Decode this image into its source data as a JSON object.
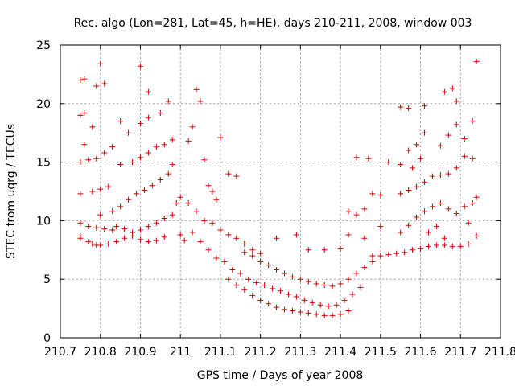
{
  "chart_data": {
    "type": "scatter",
    "title": "Rec. algo (Lon=281, Lat=45, h=HE), days 210-211, 2008, window 003",
    "xlabel": "GPS time / Days of year 2008",
    "ylabel": "STEC from uqrg / TECUs",
    "xlim": [
      210.7,
      211.8
    ],
    "ylim": [
      0,
      25
    ],
    "xticks": [
      "210.7",
      "210.8",
      "210.9",
      "211",
      "211.1",
      "211.2",
      "211.3",
      "211.4",
      "211.5",
      "211.6",
      "211.7",
      "211.8"
    ],
    "yticks": [
      "0",
      "5",
      "10",
      "15",
      "20",
      "25"
    ],
    "grid": true,
    "marker": "+",
    "color": "#cc0000",
    "series": [
      {
        "points": [
          [
            210.75,
            22.0
          ],
          [
            210.76,
            22.1
          ],
          [
            210.79,
            21.5
          ],
          [
            210.8,
            23.4
          ],
          [
            210.81,
            21.7
          ],
          [
            210.75,
            19.0
          ],
          [
            210.76,
            19.2
          ],
          [
            210.78,
            18.0
          ],
          [
            210.75,
            15.0
          ],
          [
            210.77,
            15.2
          ],
          [
            210.79,
            15.3
          ],
          [
            210.81,
            15.8
          ],
          [
            210.83,
            16.3
          ],
          [
            210.76,
            16.5
          ],
          [
            210.75,
            12.3
          ],
          [
            210.78,
            12.5
          ],
          [
            210.8,
            12.7
          ],
          [
            210.82,
            12.9
          ],
          [
            210.75,
            9.8
          ],
          [
            210.77,
            9.5
          ],
          [
            210.79,
            9.4
          ],
          [
            210.81,
            9.3
          ],
          [
            210.83,
            9.2
          ],
          [
            210.75,
            8.7
          ],
          [
            210.77,
            8.2
          ],
          [
            210.78,
            8.0
          ],
          [
            210.79,
            7.9
          ],
          [
            210.8,
            7.9
          ],
          [
            210.82,
            8.0
          ],
          [
            210.84,
            8.2
          ],
          [
            210.86,
            8.5
          ],
          [
            210.88,
            8.7
          ],
          [
            210.9,
            8.4
          ],
          [
            210.92,
            8.2
          ],
          [
            210.94,
            8.3
          ],
          [
            210.96,
            8.6
          ],
          [
            210.75,
            8.5
          ],
          [
            210.8,
            10.5
          ],
          [
            210.83,
            10.8
          ],
          [
            210.85,
            11.2
          ],
          [
            210.87,
            11.8
          ],
          [
            210.89,
            12.3
          ],
          [
            210.91,
            12.6
          ],
          [
            210.93,
            13.0
          ],
          [
            210.95,
            13.5
          ],
          [
            210.85,
            14.8
          ],
          [
            210.88,
            15.0
          ],
          [
            210.9,
            15.4
          ],
          [
            210.92,
            15.8
          ],
          [
            210.94,
            16.3
          ],
          [
            210.96,
            16.5
          ],
          [
            210.98,
            16.9
          ],
          [
            210.9,
            18.3
          ],
          [
            210.92,
            18.8
          ],
          [
            210.95,
            19.2
          ],
          [
            210.97,
            20.2
          ],
          [
            210.9,
            23.2
          ],
          [
            210.92,
            21.0
          ],
          [
            210.84,
            9.5
          ],
          [
            210.86,
            9.3
          ],
          [
            210.88,
            9.0
          ],
          [
            210.9,
            9.2
          ],
          [
            210.92,
            9.5
          ],
          [
            210.94,
            9.8
          ],
          [
            210.96,
            10.2
          ],
          [
            210.98,
            10.5
          ],
          [
            210.99,
            11.5
          ],
          [
            211.0,
            12.0
          ],
          [
            210.85,
            18.5
          ],
          [
            210.87,
            17.5
          ],
          [
            210.97,
            14.0
          ],
          [
            210.98,
            14.8
          ],
          [
            211.0,
            8.8
          ],
          [
            211.01,
            8.3
          ],
          [
            211.02,
            16.8
          ],
          [
            211.03,
            18.0
          ],
          [
            211.04,
            21.2
          ],
          [
            211.05,
            20.2
          ],
          [
            211.06,
            15.2
          ],
          [
            211.07,
            13.0
          ],
          [
            211.08,
            12.5
          ],
          [
            211.09,
            11.8
          ],
          [
            211.1,
            17.1
          ],
          [
            211.12,
            14.0
          ],
          [
            211.14,
            13.8
          ],
          [
            211.02,
            11.5
          ],
          [
            211.04,
            10.8
          ],
          [
            211.06,
            10.0
          ],
          [
            211.08,
            9.8
          ],
          [
            211.1,
            9.2
          ],
          [
            211.12,
            8.8
          ],
          [
            211.14,
            8.5
          ],
          [
            211.16,
            8.0
          ],
          [
            211.18,
            7.5
          ],
          [
            211.2,
            7.2
          ],
          [
            211.03,
            9.0
          ],
          [
            211.05,
            8.2
          ],
          [
            211.07,
            7.5
          ],
          [
            211.09,
            6.8
          ],
          [
            211.11,
            6.5
          ],
          [
            211.13,
            5.8
          ],
          [
            211.15,
            5.5
          ],
          [
            211.17,
            5.0
          ],
          [
            211.19,
            4.7
          ],
          [
            211.21,
            4.5
          ],
          [
            211.23,
            4.2
          ],
          [
            211.25,
            4.0
          ],
          [
            211.27,
            3.7
          ],
          [
            211.29,
            3.5
          ],
          [
            211.31,
            3.2
          ],
          [
            211.33,
            3.0
          ],
          [
            211.35,
            2.8
          ],
          [
            211.37,
            2.7
          ],
          [
            211.39,
            2.8
          ],
          [
            211.41,
            3.2
          ],
          [
            211.43,
            3.7
          ],
          [
            211.45,
            4.3
          ],
          [
            211.12,
            5.0
          ],
          [
            211.14,
            4.5
          ],
          [
            211.16,
            4.1
          ],
          [
            211.18,
            3.6
          ],
          [
            211.2,
            3.2
          ],
          [
            211.22,
            2.9
          ],
          [
            211.24,
            2.6
          ],
          [
            211.26,
            2.4
          ],
          [
            211.28,
            2.3
          ],
          [
            211.3,
            2.2
          ],
          [
            211.32,
            2.1
          ],
          [
            211.34,
            2.0
          ],
          [
            211.36,
            1.9
          ],
          [
            211.38,
            1.9
          ],
          [
            211.4,
            2.0
          ],
          [
            211.42,
            2.3
          ],
          [
            211.16,
            7.3
          ],
          [
            211.18,
            7.0
          ],
          [
            211.2,
            6.5
          ],
          [
            211.22,
            6.2
          ],
          [
            211.24,
            5.8
          ],
          [
            211.26,
            5.5
          ],
          [
            211.28,
            5.2
          ],
          [
            211.3,
            5.0
          ],
          [
            211.32,
            4.8
          ],
          [
            211.34,
            4.6
          ],
          [
            211.36,
            4.5
          ],
          [
            211.38,
            4.4
          ],
          [
            211.4,
            4.6
          ],
          [
            211.42,
            5.0
          ],
          [
            211.44,
            5.5
          ],
          [
            211.46,
            6.0
          ],
          [
            211.48,
            6.5
          ],
          [
            211.24,
            8.5
          ],
          [
            211.29,
            8.8
          ],
          [
            211.32,
            7.5
          ],
          [
            211.36,
            7.5
          ],
          [
            211.4,
            7.6
          ],
          [
            211.42,
            8.8
          ],
          [
            211.46,
            8.5
          ],
          [
            211.5,
            9.5
          ],
          [
            211.42,
            10.8
          ],
          [
            211.44,
            10.5
          ],
          [
            211.46,
            11.0
          ],
          [
            211.48,
            12.3
          ],
          [
            211.5,
            12.2
          ],
          [
            211.44,
            15.4
          ],
          [
            211.47,
            15.3
          ],
          [
            211.52,
            15.0
          ],
          [
            211.55,
            14.8
          ],
          [
            211.57,
            16.0
          ],
          [
            211.59,
            16.5
          ],
          [
            211.61,
            17.5
          ],
          [
            211.55,
            19.7
          ],
          [
            211.57,
            19.6
          ],
          [
            211.61,
            19.8
          ],
          [
            211.65,
            16.4
          ],
          [
            211.67,
            17.3
          ],
          [
            211.69,
            18.2
          ],
          [
            211.71,
            17.0
          ],
          [
            211.73,
            18.5
          ],
          [
            211.66,
            21.0
          ],
          [
            211.68,
            21.3
          ],
          [
            211.69,
            20.2
          ],
          [
            211.74,
            23.6
          ],
          [
            211.48,
            7.0
          ],
          [
            211.5,
            7.0
          ],
          [
            211.52,
            7.1
          ],
          [
            211.54,
            7.2
          ],
          [
            211.56,
            7.3
          ],
          [
            211.58,
            7.5
          ],
          [
            211.6,
            7.6
          ],
          [
            211.62,
            7.8
          ],
          [
            211.64,
            7.9
          ],
          [
            211.66,
            7.9
          ],
          [
            211.68,
            7.8
          ],
          [
            211.7,
            7.8
          ],
          [
            211.72,
            8.0
          ],
          [
            211.74,
            8.7
          ],
          [
            211.55,
            9.0
          ],
          [
            211.57,
            9.6
          ],
          [
            211.59,
            10.3
          ],
          [
            211.61,
            10.8
          ],
          [
            211.63,
            11.2
          ],
          [
            211.65,
            11.5
          ],
          [
            211.67,
            11.0
          ],
          [
            211.69,
            10.6
          ],
          [
            211.71,
            11.2
          ],
          [
            211.73,
            11.5
          ],
          [
            211.55,
            12.3
          ],
          [
            211.57,
            12.6
          ],
          [
            211.59,
            12.9
          ],
          [
            211.61,
            13.3
          ],
          [
            211.63,
            13.8
          ],
          [
            211.65,
            13.9
          ],
          [
            211.67,
            14.0
          ],
          [
            211.69,
            14.5
          ],
          [
            211.71,
            15.5
          ],
          [
            211.73,
            15.3
          ],
          [
            211.62,
            9.0
          ],
          [
            211.64,
            9.5
          ],
          [
            211.66,
            8.5
          ],
          [
            211.72,
            9.8
          ],
          [
            211.74,
            12.0
          ],
          [
            211.58,
            14.5
          ],
          [
            211.6,
            15.3
          ]
        ]
      }
    ]
  }
}
